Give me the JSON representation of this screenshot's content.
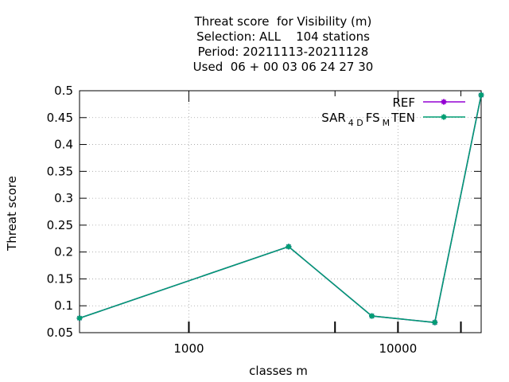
{
  "chart_data": {
    "type": "line",
    "title_lines": [
      "Threat score  for Visibility (m)",
      "Selection: ALL    104 stations",
      "Period: 20211113-20211128",
      "Used  06 + 00 03 06 24 27 30"
    ],
    "xlabel": "classes m",
    "ylabel": "Threat score",
    "xscale": "log",
    "xlim": [
      300,
      25000
    ],
    "ylim": [
      0.05,
      0.5
    ],
    "grid": true,
    "legend_position": "top-right",
    "yticks": [
      0.05,
      0.1,
      0.15,
      0.2,
      0.25,
      0.3,
      0.35,
      0.4,
      0.45,
      0.5
    ],
    "ytick_labels": [
      "0.05",
      "0.1",
      "0.15",
      "0.2",
      "0.25",
      "0.3",
      "0.35",
      "0.4",
      "0.45",
      "0.5"
    ],
    "xticks_major": [
      1000,
      10000
    ],
    "xtick_labels": [
      "1000",
      "10000"
    ],
    "xticks_minor": [
      5000,
      20000
    ],
    "series": [
      {
        "name": "REF",
        "color": "#9400d3",
        "x": [
          300,
          3000,
          7500,
          15000,
          25000
        ],
        "y": [
          0.077,
          0.21,
          0.081,
          0.069,
          0.492
        ]
      },
      {
        "name": "SAR_4D FS_M TEN",
        "legend": {
          "base1": "SAR",
          "sub1": "4 D",
          "base2": "FS",
          "sub2": "M",
          "base3": "TEN"
        },
        "color": "#009e73",
        "x": [
          300,
          3000,
          7500,
          15000,
          25000
        ],
        "y": [
          0.077,
          0.21,
          0.081,
          0.069,
          0.492
        ]
      }
    ]
  }
}
